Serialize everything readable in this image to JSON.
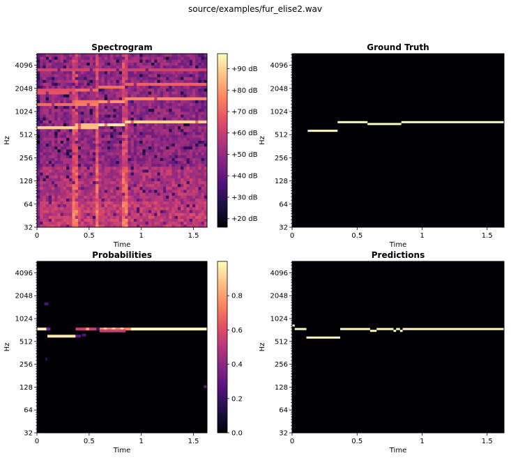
{
  "figure_title": "source/examples/fur_elise2.wav",
  "colors": {
    "background": "#000004",
    "note_on": "#fcfdbf",
    "colormap": "magma"
  },
  "chart_data": [
    {
      "type": "heatmap",
      "title": "Spectrogram",
      "xlabel": "Time",
      "ylabel": "Hz",
      "xlim": [
        0,
        1.63
      ],
      "ylim": [
        32,
        5800
      ],
      "yscale": "log2",
      "xticks": [
        {
          "value": 0,
          "label": "0"
        },
        {
          "value": 0.5,
          "label": "0.5"
        },
        {
          "value": 1,
          "label": "1"
        },
        {
          "value": 1.5,
          "label": "1.5"
        }
      ],
      "yticks": [
        {
          "value": 32,
          "label": "32"
        },
        {
          "value": 64,
          "label": "64"
        },
        {
          "value": 128,
          "label": "128"
        },
        {
          "value": 256,
          "label": "256"
        },
        {
          "value": 512,
          "label": "512"
        },
        {
          "value": 1024,
          "label": "1024"
        },
        {
          "value": 2048,
          "label": "2048"
        },
        {
          "value": 4096,
          "label": "4096"
        }
      ],
      "colorbar": {
        "range": [
          16,
          97
        ],
        "ticks": [
          {
            "value": 20,
            "label": "+20 dB"
          },
          {
            "value": 30,
            "label": "+30 dB"
          },
          {
            "value": 40,
            "label": "+40 dB"
          },
          {
            "value": 50,
            "label": "+50 dB"
          },
          {
            "value": 60,
            "label": "+60 dB"
          },
          {
            "value": 70,
            "label": "+70 dB"
          },
          {
            "value": 80,
            "label": "+80 dB"
          },
          {
            "value": 90,
            "label": "+90 dB"
          }
        ]
      },
      "onsets": [
        0.37,
        0.58,
        0.84
      ],
      "harmonics": [
        {
          "t0": 0.0,
          "t1": 0.37,
          "freq": 620,
          "level": 92
        },
        {
          "t0": 0.0,
          "t1": 0.37,
          "freq": 1240,
          "level": 74
        },
        {
          "t0": 0.0,
          "t1": 0.37,
          "freq": 1860,
          "level": 70
        },
        {
          "t0": 0.37,
          "t1": 0.58,
          "freq": 660,
          "level": 90
        },
        {
          "t0": 0.37,
          "t1": 0.58,
          "freq": 1320,
          "level": 78
        },
        {
          "t0": 0.37,
          "t1": 0.58,
          "freq": 1980,
          "level": 72
        },
        {
          "t0": 0.58,
          "t1": 0.84,
          "freq": 700,
          "level": 94
        },
        {
          "t0": 0.58,
          "t1": 0.84,
          "freq": 1400,
          "level": 80
        },
        {
          "t0": 0.58,
          "t1": 0.84,
          "freq": 2100,
          "level": 74
        },
        {
          "t0": 0.84,
          "t1": 1.63,
          "freq": 760,
          "level": 90
        },
        {
          "t0": 0.84,
          "t1": 1.63,
          "freq": 1520,
          "level": 78
        },
        {
          "t0": 0.84,
          "t1": 1.63,
          "freq": 2280,
          "level": 72
        },
        {
          "t0": 0.0,
          "t1": 1.63,
          "freq": 3600,
          "level": 62
        }
      ]
    },
    {
      "type": "heatmap",
      "title": "Ground Truth",
      "xlabel": "Time",
      "ylabel": "Hz",
      "xlim": [
        0,
        1.63
      ],
      "ylim": [
        32,
        5800
      ],
      "yscale": "log2",
      "xticks": [
        {
          "value": 0,
          "label": "0"
        },
        {
          "value": 0.5,
          "label": "0.5"
        },
        {
          "value": 1,
          "label": "1"
        },
        {
          "value": 1.5,
          "label": "1.5"
        }
      ],
      "yticks": [
        {
          "value": 32,
          "label": "32"
        },
        {
          "value": 64,
          "label": "64"
        },
        {
          "value": 128,
          "label": "128"
        },
        {
          "value": 256,
          "label": "256"
        },
        {
          "value": 512,
          "label": "512"
        },
        {
          "value": 1024,
          "label": "1024"
        },
        {
          "value": 2048,
          "label": "2048"
        },
        {
          "value": 4096,
          "label": "4096"
        }
      ],
      "notes": [
        {
          "t0": 0.12,
          "t1": 0.35,
          "freq": 575
        },
        {
          "t0": 0.35,
          "t1": 0.58,
          "freq": 745
        },
        {
          "t0": 0.58,
          "t1": 0.84,
          "freq": 705
        },
        {
          "t0": 0.84,
          "t1": 1.63,
          "freq": 745
        }
      ]
    },
    {
      "type": "heatmap",
      "title": "Probabilities",
      "xlabel": "Time",
      "ylabel": "Hz",
      "xlim": [
        0,
        1.63
      ],
      "ylim": [
        32,
        5800
      ],
      "yscale": "log2",
      "xticks": [
        {
          "value": 0,
          "label": "0"
        },
        {
          "value": 0.5,
          "label": "0.5"
        },
        {
          "value": 1,
          "label": "1"
        },
        {
          "value": 1.5,
          "label": "1.5"
        }
      ],
      "yticks": [
        {
          "value": 32,
          "label": "32"
        },
        {
          "value": 64,
          "label": "64"
        },
        {
          "value": 128,
          "label": "128"
        },
        {
          "value": 256,
          "label": "256"
        },
        {
          "value": 512,
          "label": "512"
        },
        {
          "value": 1024,
          "label": "1024"
        },
        {
          "value": 2048,
          "label": "2048"
        },
        {
          "value": 4096,
          "label": "4096"
        }
      ],
      "colorbar": {
        "range": [
          0,
          1
        ],
        "ticks": [
          {
            "value": 0,
            "label": "0.0"
          },
          {
            "value": 0.2,
            "label": "0.2"
          },
          {
            "value": 0.4,
            "label": "0.4"
          },
          {
            "value": 0.6,
            "label": "0.6"
          },
          {
            "value": 0.8,
            "label": "0.8"
          }
        ]
      },
      "cells": [
        {
          "t0": 0.0,
          "t1": 0.09,
          "freq": 745,
          "p": 0.97
        },
        {
          "t0": 0.09,
          "t1": 0.13,
          "freq": 745,
          "p": 0.35
        },
        {
          "t0": 0.1,
          "t1": 0.37,
          "freq": 600,
          "p": 0.96
        },
        {
          "t0": 0.37,
          "t1": 0.42,
          "freq": 600,
          "p": 0.3
        },
        {
          "t0": 0.37,
          "t1": 0.57,
          "freq": 745,
          "p": 0.55
        },
        {
          "t0": 0.47,
          "t1": 0.5,
          "freq": 745,
          "p": 0.8
        },
        {
          "t0": 0.43,
          "t1": 0.47,
          "freq": 620,
          "p": 0.25
        },
        {
          "t0": 0.57,
          "t1": 0.6,
          "freq": 745,
          "p": 0.2
        },
        {
          "t0": 0.6,
          "t1": 0.9,
          "freq": 745,
          "p": 0.75
        },
        {
          "t0": 0.64,
          "t1": 0.67,
          "freq": 745,
          "p": 0.92
        },
        {
          "t0": 0.72,
          "t1": 0.75,
          "freq": 745,
          "p": 0.92
        },
        {
          "t0": 0.8,
          "t1": 0.83,
          "freq": 745,
          "p": 0.94
        },
        {
          "t0": 0.6,
          "t1": 0.85,
          "freq": 705,
          "p": 0.55
        },
        {
          "t0": 0.9,
          "t1": 1.63,
          "freq": 745,
          "p": 0.99
        },
        {
          "t0": 0.07,
          "t1": 0.11,
          "freq": 1600,
          "p": 0.25
        },
        {
          "t0": 1.6,
          "t1": 1.63,
          "freq": 130,
          "p": 0.3
        },
        {
          "t0": 0.08,
          "t1": 0.1,
          "freq": 300,
          "p": 0.15
        }
      ]
    },
    {
      "type": "heatmap",
      "title": "Predictions",
      "xlabel": "Time",
      "ylabel": "Hz",
      "xlim": [
        0,
        1.63
      ],
      "ylim": [
        32,
        5800
      ],
      "yscale": "log2",
      "xticks": [
        {
          "value": 0,
          "label": "0"
        },
        {
          "value": 0.5,
          "label": "0.5"
        },
        {
          "value": 1,
          "label": "1"
        },
        {
          "value": 1.5,
          "label": "1.5"
        }
      ],
      "yticks": [
        {
          "value": 32,
          "label": "32"
        },
        {
          "value": 64,
          "label": "64"
        },
        {
          "value": 128,
          "label": "128"
        },
        {
          "value": 256,
          "label": "256"
        },
        {
          "value": 512,
          "label": "512"
        },
        {
          "value": 1024,
          "label": "1024"
        },
        {
          "value": 2048,
          "label": "2048"
        },
        {
          "value": 4096,
          "label": "4096"
        }
      ],
      "notes": [
        {
          "t0": 0.0,
          "t1": 0.02,
          "freq": 830
        },
        {
          "t0": 0.02,
          "t1": 0.11,
          "freq": 745
        },
        {
          "t0": 0.11,
          "t1": 0.37,
          "freq": 575
        },
        {
          "t0": 0.37,
          "t1": 0.6,
          "freq": 745
        },
        {
          "t0": 0.6,
          "t1": 0.65,
          "freq": 705
        },
        {
          "t0": 0.65,
          "t1": 0.78,
          "freq": 745
        },
        {
          "t0": 0.78,
          "t1": 0.8,
          "freq": 705
        },
        {
          "t0": 0.8,
          "t1": 0.83,
          "freq": 745
        },
        {
          "t0": 0.83,
          "t1": 0.85,
          "freq": 705
        },
        {
          "t0": 0.85,
          "t1": 1.63,
          "freq": 745
        }
      ]
    }
  ]
}
